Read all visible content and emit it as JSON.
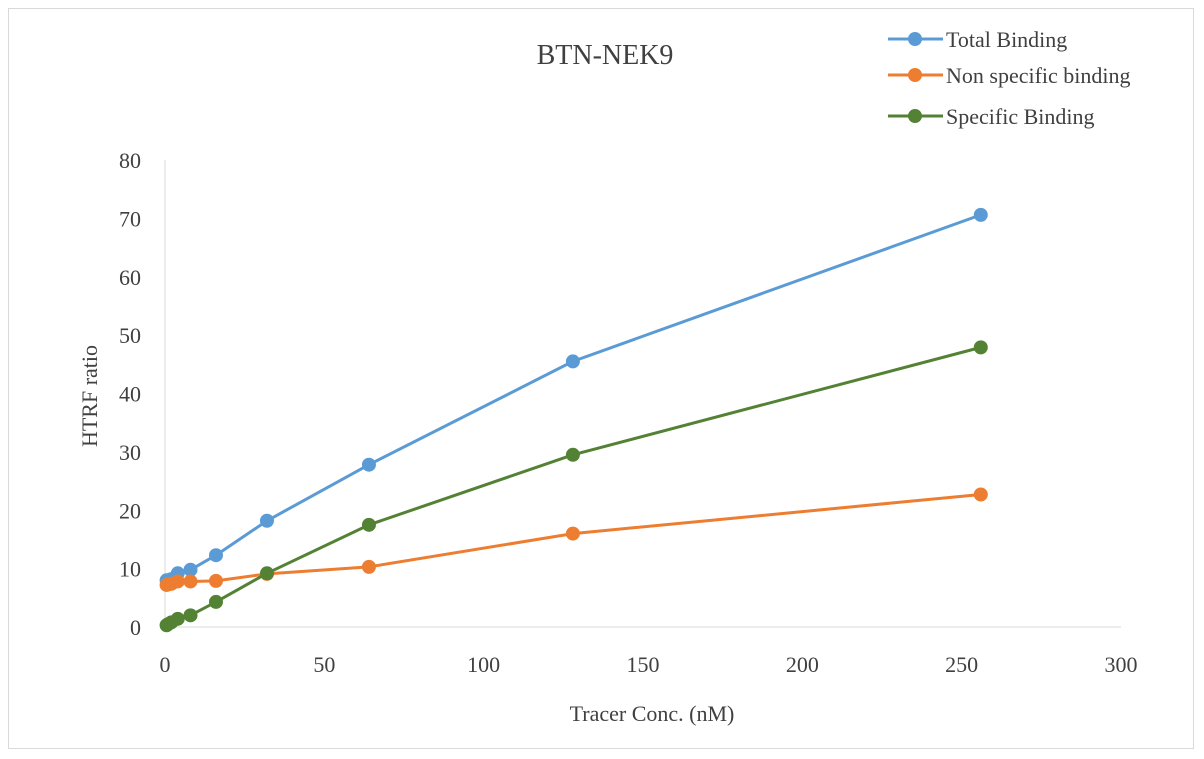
{
  "chart_data": {
    "type": "line",
    "title": "BTN-NEK9",
    "xlabel": "Tracer Conc. (nM)",
    "ylabel": "HTRF ratio",
    "xlim": [
      0,
      300
    ],
    "ylim": [
      0,
      80
    ],
    "xticks": [
      "0",
      "50",
      "100",
      "150",
      "200",
      "250",
      "300"
    ],
    "yticks": [
      "0",
      "10",
      "20",
      "30",
      "40",
      "50",
      "60",
      "70",
      "80"
    ],
    "grid": false,
    "legend_position": "top-right",
    "series": [
      {
        "name": "Total Binding",
        "color": "#5b9bd5",
        "x": [
          0.5,
          1,
          2,
          4,
          8,
          16,
          32,
          64,
          128,
          256
        ],
        "y": [
          8.0,
          8.0,
          8.2,
          9.2,
          9.8,
          12.3,
          18.2,
          27.8,
          45.5,
          70.6
        ]
      },
      {
        "name": "Non specific binding",
        "color": "#ed7d31",
        "x": [
          0.5,
          1,
          2,
          4,
          8,
          16,
          32,
          64,
          128,
          256
        ],
        "y": [
          7.2,
          7.3,
          7.4,
          7.8,
          7.8,
          7.9,
          9.1,
          10.3,
          16.0,
          22.7
        ]
      },
      {
        "name": "Specific Binding",
        "color": "#548235",
        "x": [
          0.5,
          1,
          2,
          4,
          8,
          16,
          32,
          64,
          128,
          256
        ],
        "y": [
          0.3,
          0.5,
          0.8,
          1.4,
          2.0,
          4.3,
          9.2,
          17.5,
          29.5,
          47.9
        ]
      }
    ]
  }
}
